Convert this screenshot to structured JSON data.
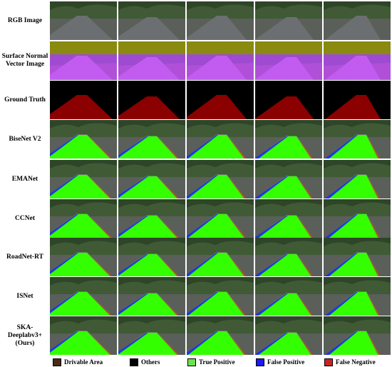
{
  "rows": [
    {
      "label": "RGB Image",
      "kind": "rgb"
    },
    {
      "label": "Surface Normal Vector Image",
      "kind": "normal"
    },
    {
      "label": "Ground Truth",
      "kind": "gt"
    },
    {
      "label": "BiseNet V2",
      "kind": "pred"
    },
    {
      "label": "EMANet",
      "kind": "pred"
    },
    {
      "label": "CCNet",
      "kind": "pred"
    },
    {
      "label": "RoadNet-RT",
      "kind": "pred"
    },
    {
      "label": "ISNet",
      "kind": "pred"
    },
    {
      "label": "SKA-Deeplabv3+ (Ours)",
      "kind": "pred"
    }
  ],
  "legend": [
    {
      "label": "Drivable Area",
      "color": "#4a2a14"
    },
    {
      "label": "Others",
      "color": "#000000"
    },
    {
      "label": "True Positive",
      "color": "#6fe050"
    },
    {
      "label": "False Positive",
      "color": "#1a1aff"
    },
    {
      "label": "False Negative",
      "color": "#cc2222"
    }
  ],
  "colors": {
    "sky": "#b9c3c9",
    "tree": "#3f5a35",
    "road_gray": "#6c6f72",
    "normal_top": "#8a8a10",
    "normal_road": "#b050d8",
    "gt_bg": "#000000",
    "gt_road": "#8b0000",
    "tp": "#33ff00",
    "fp": "#1a1aff",
    "fn": "#cc2222"
  }
}
